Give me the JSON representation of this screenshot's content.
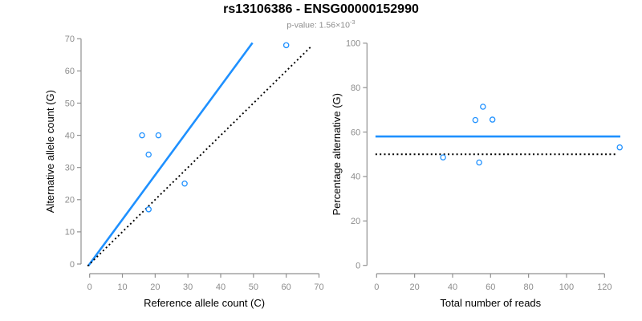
{
  "header": {
    "title": "rs13106386 - ENSG00000152990",
    "subtitle_text": "p-value: 1.56×10",
    "subtitle_exponent": "-3"
  },
  "colors": {
    "accent_blue": "#1E90FF",
    "dotted_black": "#000000",
    "tick_label": "#8c8c8c",
    "axis_line": "#919191",
    "axis_title": "#000000",
    "title": "#000000",
    "subtitle": "#8c8c8c"
  },
  "chart_data": [
    {
      "type": "scatter",
      "name": "allele-count-scatter",
      "xlabel": "Reference allele count (C)",
      "ylabel": "Alternative allele count (G)",
      "xlim": [
        0,
        70
      ],
      "ylim": [
        0,
        70
      ],
      "xticks": [
        0,
        10,
        20,
        30,
        40,
        50,
        60,
        70
      ],
      "yticks": [
        0,
        10,
        20,
        30,
        40,
        50,
        60,
        70
      ],
      "grid": false,
      "points": [
        [
          16,
          40
        ],
        [
          21,
          40
        ],
        [
          18,
          34
        ],
        [
          29,
          25
        ],
        [
          18,
          17
        ],
        [
          60,
          68
        ]
      ],
      "lines": [
        {
          "name": "fitted-line",
          "style": "solid",
          "color_key": "accent_blue",
          "slope": 1.383,
          "intercept": 0,
          "x_range": [
            -0.4,
            49.7
          ]
        },
        {
          "name": "identity-line",
          "style": "dotted",
          "color_key": "dotted_black",
          "slope": 1,
          "intercept": 0,
          "x_range": [
            -0.6,
            67.8
          ]
        }
      ]
    },
    {
      "type": "scatter",
      "name": "percentage-vs-reads-scatter",
      "xlabel": "Total number of reads",
      "ylabel": "Percentage alternative (G)",
      "xlim": [
        0,
        120
      ],
      "ylim": [
        0,
        100
      ],
      "xticks": [
        0,
        20,
        40,
        60,
        80,
        100,
        120
      ],
      "yticks": [
        0,
        20,
        40,
        60,
        80,
        100
      ],
      "grid": false,
      "points": [
        [
          56,
          71.4
        ],
        [
          61,
          65.6
        ],
        [
          52,
          65.4
        ],
        [
          35,
          48.6
        ],
        [
          54,
          46.3
        ],
        [
          128,
          53.1
        ]
      ],
      "lines": [
        {
          "name": "mean-percentage-line",
          "style": "solid",
          "color_key": "accent_blue",
          "slope": 0,
          "intercept": 58.0,
          "x_range": [
            -0.6,
            128.3
          ]
        },
        {
          "name": "expected-percentage-line",
          "style": "dotted",
          "color_key": "dotted_black",
          "slope": 0,
          "intercept": 50,
          "x_range": [
            -0.6,
            126.6
          ]
        }
      ]
    }
  ]
}
